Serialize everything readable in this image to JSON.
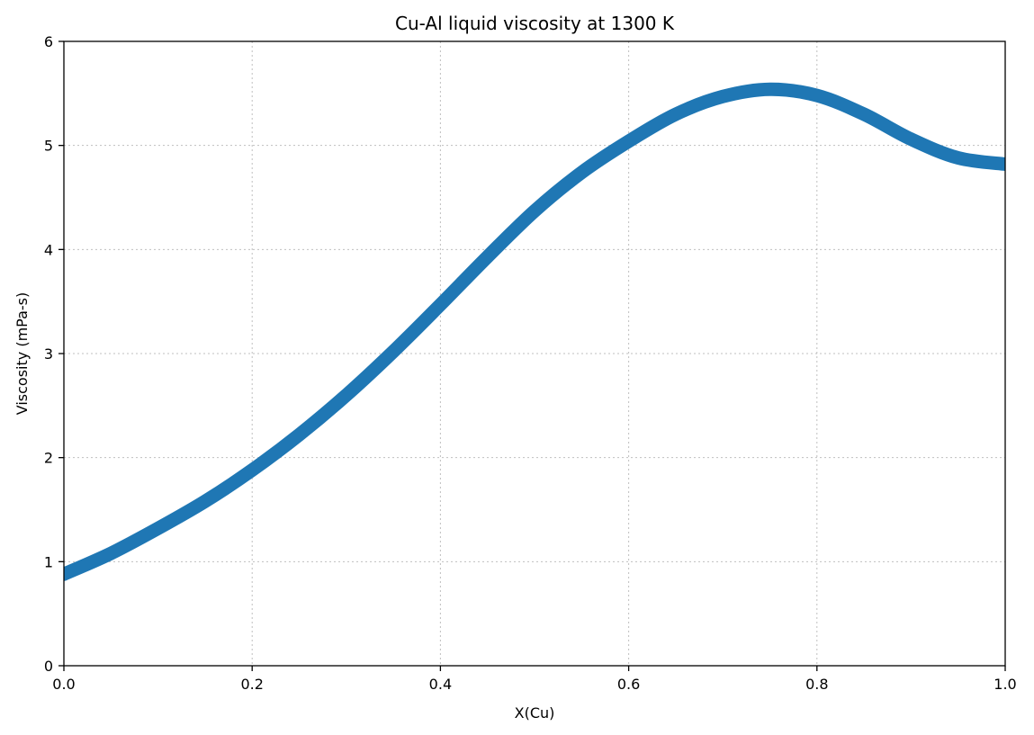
{
  "chart_data": {
    "type": "line",
    "title": "Cu-Al liquid viscosity at 1300 K",
    "xlabel": "X(Cu)",
    "ylabel": "Viscosity (mPa-s)",
    "xlim": [
      0.0,
      1.0
    ],
    "ylim": [
      0,
      6
    ],
    "xticks": [
      "0.0",
      "0.2",
      "0.4",
      "0.6",
      "0.8",
      "1.0"
    ],
    "yticks": [
      "0",
      "1",
      "2",
      "3",
      "4",
      "5",
      "6"
    ],
    "grid": true,
    "line_color": "#1f77b4",
    "series": [
      {
        "x": [
          0.0,
          0.05,
          0.1,
          0.15,
          0.2,
          0.25,
          0.3,
          0.35,
          0.4,
          0.45,
          0.5,
          0.55,
          0.6,
          0.65,
          0.7,
          0.75,
          0.8,
          0.85,
          0.9,
          0.95,
          1.0
        ],
        "values": [
          0.88,
          1.08,
          1.32,
          1.58,
          1.88,
          2.22,
          2.6,
          3.02,
          3.47,
          3.93,
          4.37,
          4.74,
          5.04,
          5.3,
          5.47,
          5.54,
          5.48,
          5.3,
          5.06,
          4.88,
          4.82
        ]
      }
    ]
  }
}
